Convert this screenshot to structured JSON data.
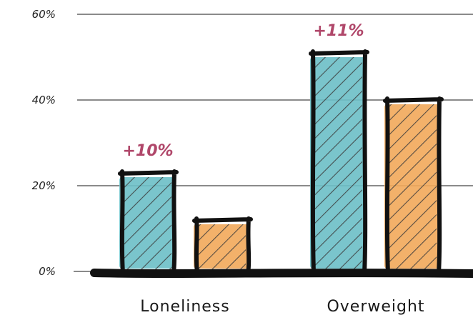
{
  "chart_data": {
    "type": "bar",
    "categories": [
      "Loneliness",
      "Overweight"
    ],
    "series": [
      {
        "values": [
          23,
          51
        ],
        "color": "#6cbfc7",
        "pattern": "hatched"
      },
      {
        "values": [
          12,
          40
        ],
        "color": "#f2a95a",
        "pattern": "hatched"
      }
    ],
    "ylim": [
      0,
      60
    ],
    "yticks": [
      "0%",
      "20%",
      "40%",
      "60%"
    ],
    "annotations": [
      "+10%",
      "+11%"
    ],
    "grid": true,
    "style": "hand-drawn"
  }
}
